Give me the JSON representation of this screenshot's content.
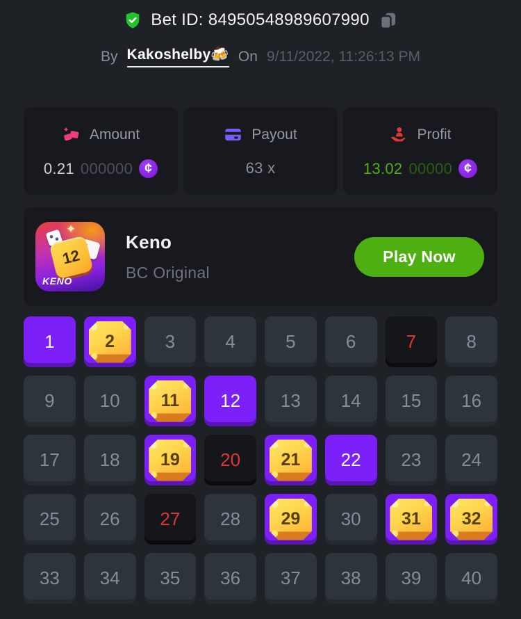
{
  "header": {
    "bet_id": "Bet ID: 84950548989607990",
    "by_label": "By",
    "username": "Kakoshelby🍻",
    "on_label": "On",
    "datetime": "9/11/2022, 11:26:13 PM"
  },
  "stats": {
    "amount": {
      "label": "Amount",
      "value_main": "0.21",
      "value_dim": "000000",
      "currency": "¢"
    },
    "payout": {
      "label": "Payout",
      "value": "63 x"
    },
    "profit": {
      "label": "Profit",
      "value_main": "13.02",
      "value_dim": "00000",
      "currency": "¢"
    }
  },
  "game": {
    "title": "Keno",
    "provider": "BC Original",
    "play_button_label": "Play Now",
    "icon_text": "KENO",
    "icon_tile_number": "12",
    "sparkle_glyph": "✦"
  },
  "keno_grid": {
    "selected_numbers": [
      1,
      12,
      22
    ],
    "hit_numbers": [
      2,
      11,
      19,
      21,
      29,
      31,
      32
    ],
    "missed_draws": [
      7,
      20,
      27
    ],
    "tiles": [
      {
        "n": 1,
        "state": "selected"
      },
      {
        "n": 2,
        "state": "hit"
      },
      {
        "n": 3,
        "state": "default"
      },
      {
        "n": 4,
        "state": "default"
      },
      {
        "n": 5,
        "state": "default"
      },
      {
        "n": 6,
        "state": "default"
      },
      {
        "n": 7,
        "state": "miss"
      },
      {
        "n": 8,
        "state": "default"
      },
      {
        "n": 9,
        "state": "default"
      },
      {
        "n": 10,
        "state": "default"
      },
      {
        "n": 11,
        "state": "hit"
      },
      {
        "n": 12,
        "state": "selected"
      },
      {
        "n": 13,
        "state": "default"
      },
      {
        "n": 14,
        "state": "default"
      },
      {
        "n": 15,
        "state": "default"
      },
      {
        "n": 16,
        "state": "default"
      },
      {
        "n": 17,
        "state": "default"
      },
      {
        "n": 18,
        "state": "default"
      },
      {
        "n": 19,
        "state": "hit"
      },
      {
        "n": 20,
        "state": "miss"
      },
      {
        "n": 21,
        "state": "hit"
      },
      {
        "n": 22,
        "state": "selected"
      },
      {
        "n": 23,
        "state": "default"
      },
      {
        "n": 24,
        "state": "default"
      },
      {
        "n": 25,
        "state": "default"
      },
      {
        "n": 26,
        "state": "default"
      },
      {
        "n": 27,
        "state": "miss"
      },
      {
        "n": 28,
        "state": "default"
      },
      {
        "n": 29,
        "state": "hit"
      },
      {
        "n": 30,
        "state": "default"
      },
      {
        "n": 31,
        "state": "hit"
      },
      {
        "n": 32,
        "state": "hit"
      },
      {
        "n": 33,
        "state": "default"
      },
      {
        "n": 34,
        "state": "default"
      },
      {
        "n": 35,
        "state": "default"
      },
      {
        "n": 36,
        "state": "default"
      },
      {
        "n": 37,
        "state": "default"
      },
      {
        "n": 38,
        "state": "default"
      },
      {
        "n": 39,
        "state": "default"
      },
      {
        "n": 40,
        "state": "default"
      }
    ]
  },
  "icons": {
    "verified_shield": "shield-check-icon",
    "copy": "copy-icon",
    "amount": "gems-icon",
    "payout": "credit-card-icon",
    "profit": "hand-person-icon",
    "currency_coin": "coin-icon"
  },
  "colors": {
    "background": "#1e2126",
    "card_bg": "#17191e",
    "tile_bg": "#2e343c",
    "accent_purple": "#7c1ff9",
    "gold": "#ffd44d",
    "miss_red": "#e23434",
    "play_green": "#4daf10",
    "profit_green": "#4cb30f",
    "coin_purple": "#8b21e8",
    "amount_pink": "#ee3d7d",
    "payout_violet": "#7d5bfa",
    "shield_green": "#1fc32a"
  }
}
